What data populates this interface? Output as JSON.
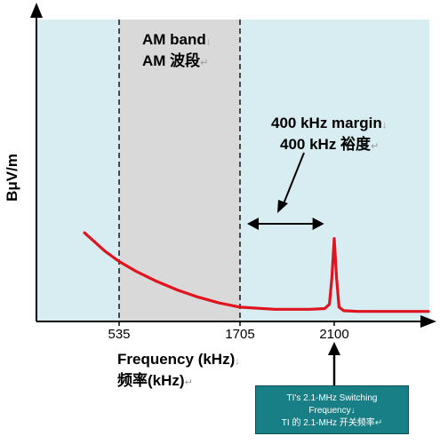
{
  "chart_data": {
    "type": "line",
    "title": "",
    "ylabel": "BμV/m",
    "xlabel_en": "Frequency (kHz)",
    "xlabel_zh": "频率(kHz)",
    "x_ticks": [
      535,
      1705,
      2100
    ],
    "series": [
      {
        "x": [
          200,
          400,
          535,
          700,
          900,
          1100,
          1300,
          1500,
          1705,
          1850,
          2000,
          2060,
          2080,
          2090,
          2100,
          2110,
          2120,
          2140,
          2200,
          2400,
          2600
        ],
        "y": [
          0.62,
          0.49,
          0.42,
          0.35,
          0.28,
          0.22,
          0.17,
          0.13,
          0.1,
          0.085,
          0.085,
          0.09,
          0.12,
          0.3,
          0.58,
          0.3,
          0.1,
          0.075,
          0.07,
          0.07,
          0.07
        ]
      }
    ],
    "shaded_band": {
      "from": 535,
      "to": 1705
    },
    "margin_arrow": {
      "from": 1705,
      "to": 2080
    },
    "colors": {
      "plot_bg": "#d7edf2",
      "band": "#d9d9d9",
      "curve": "#e0141e",
      "callout_bg": "#187f86"
    }
  },
  "annotations": {
    "am_band_en": "AM band",
    "am_band_zh": "AM 波段",
    "margin_en": "400 kHz margin",
    "margin_zh": "400 kHz 裕度",
    "callout_line1": "TI's 2.1-MHz Switching",
    "callout_line2": "Frequency",
    "callout_line3": "TI 的 2.1-MHz 开关频率",
    "para_mark": "↓",
    "ret_mark": "↵"
  }
}
